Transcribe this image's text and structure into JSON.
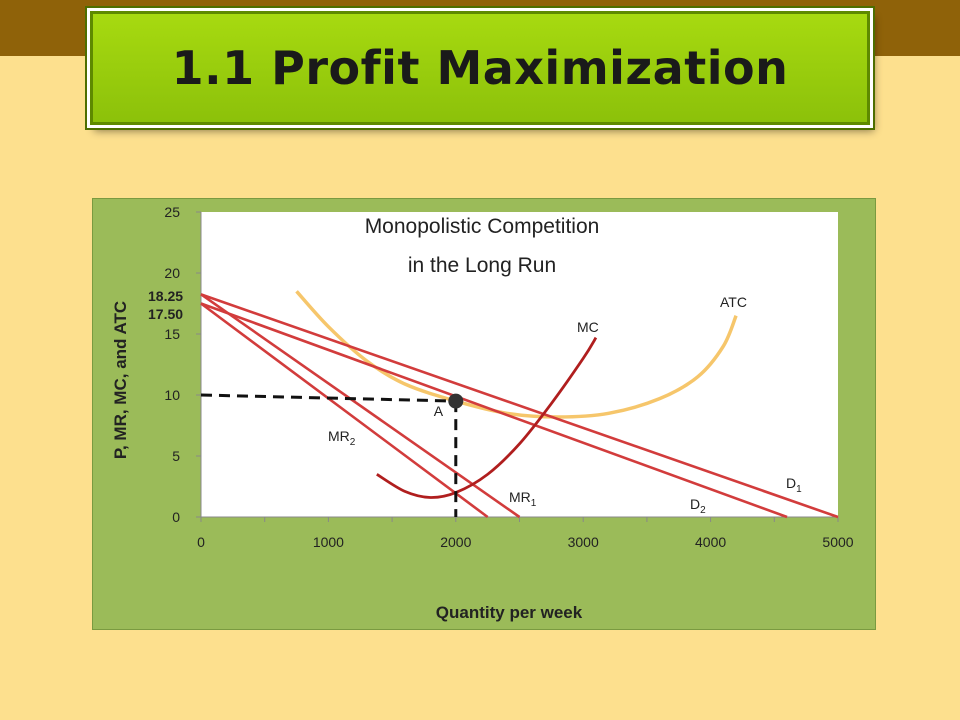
{
  "slide_title": "1.1 Profit Maximization",
  "colors": {
    "background": "#FDE08E",
    "top_band": "#8F6209",
    "title_box": "#99CC11",
    "chart_panel": "#9BBB59",
    "line_red": "#D23C3C",
    "mc_red": "#B01E1E",
    "atc": "#F6C66B"
  },
  "chart_data": {
    "type": "line",
    "title_line1": "Monopolistic Competition",
    "title_line2": "in the Long Run",
    "xlabel": "Quantity per week",
    "ylabel": "P, MR, MC, and ATC",
    "xlim": [
      0,
      5000
    ],
    "ylim": [
      0,
      25
    ],
    "x_ticks": [
      "0",
      "1000",
      "2000",
      "3000",
      "4000",
      "5000"
    ],
    "y_ticks": [
      "0",
      "5",
      "10",
      "15",
      "20",
      "25"
    ],
    "price_labels": [
      "18.25",
      "17.50"
    ],
    "series": [
      {
        "name": "D1",
        "sub": "1",
        "base": "D",
        "x": [
          0,
          5000
        ],
        "y": [
          18.25,
          0
        ]
      },
      {
        "name": "D2",
        "sub": "2",
        "base": "D",
        "x": [
          0,
          4600
        ],
        "y": [
          17.5,
          0
        ]
      },
      {
        "name": "MR1",
        "sub": "1",
        "base": "MR",
        "x": [
          0,
          2500
        ],
        "y": [
          18.25,
          0
        ]
      },
      {
        "name": "MR2",
        "sub": "2",
        "base": "MR",
        "x": [
          0,
          2250
        ],
        "y": [
          17.5,
          0
        ]
      },
      {
        "name": "MC",
        "x": [
          1380,
          1600,
          1800,
          2000,
          2250,
          2500,
          2750,
          3000,
          3100
        ],
        "y": [
          3.5,
          2.1,
          1.6,
          2.0,
          3.5,
          6.0,
          9.3,
          13.0,
          14.7
        ]
      },
      {
        "name": "ATC",
        "x": [
          750,
          1000,
          1300,
          1600,
          2000,
          2400,
          2800,
          3200,
          3600,
          3900,
          4100,
          4200
        ],
        "y": [
          18.5,
          15.6,
          12.8,
          10.9,
          9.5,
          8.5,
          8.2,
          8.5,
          9.7,
          11.5,
          14.0,
          16.5
        ]
      }
    ],
    "point": {
      "label": "A",
      "x": 2000,
      "y": 9.5
    },
    "legend": "none",
    "grid": false
  }
}
